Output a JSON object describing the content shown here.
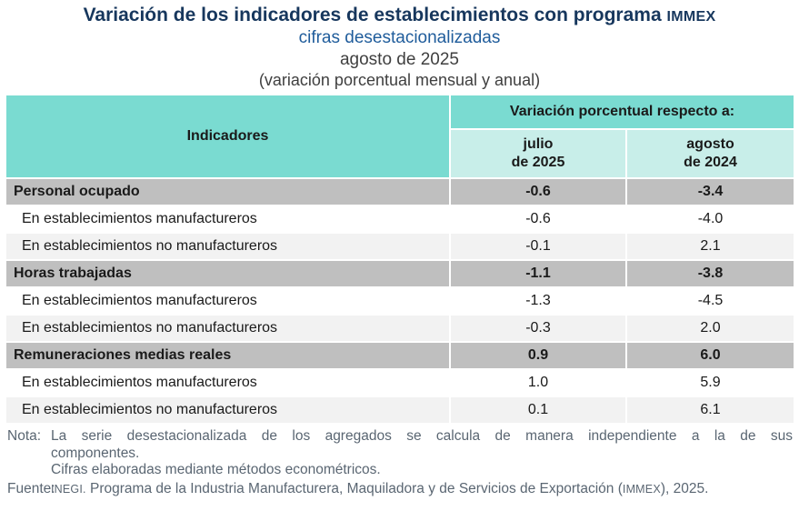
{
  "header": {
    "title_main": "Variación de los indicadores de establecimientos con programa",
    "title_immex": "IMMEX",
    "subtitle_1": "cifras desestacionalizadas",
    "subtitle_2": "agosto de 2025",
    "subtitle_3": "(variación porcentual mensual y anual)"
  },
  "table": {
    "col_indicadores": "Indicadores",
    "col_group": "Variación porcentual respecto a:",
    "col_monthly_line1": "julio",
    "col_monthly_line2": "de 2025",
    "col_annual_line1": "agosto",
    "col_annual_line2": "de 2024",
    "rows": [
      {
        "label": "Personal ocupado",
        "monthly": "-0.6",
        "annual": "-3.4",
        "style": "section"
      },
      {
        "label": "En establecimientos manufactureros",
        "monthly": "-0.6",
        "annual": "-4.0",
        "style": "sub-white"
      },
      {
        "label": "En establecimientos no manufactureros",
        "monthly": "-0.1",
        "annual": "2.1",
        "style": "sub-gray"
      },
      {
        "label": "Horas trabajadas",
        "monthly": "-1.1",
        "annual": "-3.8",
        "style": "section"
      },
      {
        "label": "En establecimientos manufactureros",
        "monthly": "-1.3",
        "annual": "-4.5",
        "style": "sub-white"
      },
      {
        "label": "En establecimientos no manufactureros",
        "monthly": "-0.3",
        "annual": "2.0",
        "style": "sub-gray"
      },
      {
        "label": "Remuneraciones medias reales",
        "monthly": "0.9",
        "annual": "6.0",
        "style": "section"
      },
      {
        "label": "En establecimientos manufactureros",
        "monthly": "1.0",
        "annual": "5.9",
        "style": "sub-white"
      },
      {
        "label": "En establecimientos no manufactureros",
        "monthly": "0.1",
        "annual": "6.1",
        "style": "sub-gray"
      }
    ]
  },
  "notes": {
    "nota_label": "Nota:",
    "nota_line1": "La serie desestacionalizada de los agregados se calcula de manera independiente a la de sus",
    "nota_line2": "componentes.",
    "nota_line3": "Cifras elaboradas mediante métodos econométricos.",
    "fuente_label": "Fuente:",
    "fuente_inegi": "INEGI.",
    "fuente_text": " Programa de la Industria Manufacturera, Maquiladora y de Servicios de Exportación (",
    "fuente_immex": "IMMEX",
    "fuente_end": "), 2025."
  },
  "colors": {
    "header_teal": "#7ADBD1",
    "header_light_teal": "#C8EEE9",
    "section_row_gray": "#BFBFBF",
    "alt_row_gray": "#F2F2F2",
    "title_navy": "#17375D",
    "subtitle_blue": "#1F5C9B",
    "footer_gray": "#5A6672"
  }
}
